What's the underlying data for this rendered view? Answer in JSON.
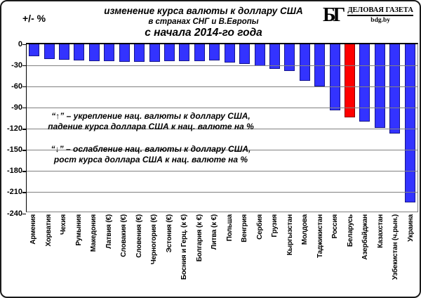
{
  "header": {
    "unit_label": "+/- %",
    "title_line1": "изменение курса валюты к доллару США",
    "title_line2": "в странах СНГ и В.Европы",
    "title_line3": "с начала 2014-го года"
  },
  "logo": {
    "monogram": "БГ",
    "name": "ДЕЛОВАЯ ГАЗЕТА",
    "site": "bdg.by"
  },
  "annotations": {
    "up_line1": "“↑” – укрепление нац. валюты к доллару США,",
    "up_line2": "падение курса доллара США к нац. валюте на %",
    "down_line1": "“↓” – ослабление нац. валюты к доллару США,",
    "down_line2": "рост курса доллара США к нац. валюте на %"
  },
  "chart_data": {
    "type": "bar",
    "title": "изменение курса валюты к доллару США в странах СНГ и В.Европы с начала 2014-го года",
    "ylabel": "+/- %",
    "ylim": [
      -240,
      0
    ],
    "yticks": [
      0,
      -30,
      -60,
      -90,
      -120,
      -150,
      -180,
      -210,
      -240
    ],
    "grid": true,
    "legend_position": "none",
    "categories": [
      "Армения",
      "Хорватия",
      "Чехия",
      "Румыния",
      "Македония",
      "Латвия (€)",
      "Словакия (€)",
      "Словения (€)",
      "Черногория (€)",
      "Эстония (€)",
      "Босния и Герц. (к €)",
      "Болгария (к €)",
      "Литва (к €)",
      "Польша",
      "Венгрия",
      "Сербия",
      "Грузия",
      "Кыргызстан",
      "Молдова",
      "Таджикистан",
      "Россия",
      "Беларусь",
      "Азербайджан",
      "Казахстан",
      "Узбекистан (ч.рын.)",
      "Украина"
    ],
    "values": [
      -17,
      -21,
      -22,
      -23,
      -24,
      -24,
      -25,
      -25,
      -25,
      -24,
      -24,
      -24,
      -23,
      -26,
      -28,
      -31,
      -35,
      -38,
      -52,
      -60,
      -94,
      -104,
      -110,
      -119,
      -126,
      -224
    ],
    "highlight_index": 21,
    "highlight_category": "Беларусь",
    "colors": {
      "bar": "#3333ff",
      "bar_border": "#16168c",
      "highlight": "#fe0000",
      "highlight_border": "#8b0000",
      "gridline": "#808080"
    }
  }
}
